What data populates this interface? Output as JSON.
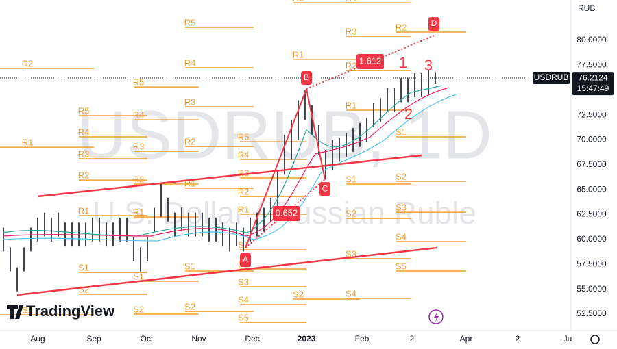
{
  "chart_data": {
    "type": "range-bar",
    "title": "USDRUB, 1D",
    "subtitle": "U.S. Dollar / Russian Ruble",
    "brand": "TradingView",
    "currency": "RUB",
    "symbol": "USDRUB",
    "last_price": 76.2124,
    "last_price_label": "76.2124",
    "countdown": "15:47:49",
    "ylim": [
      50.85,
      84.06
    ],
    "yticks": [
      {
        "value": 80,
        "label": "80.0000"
      },
      {
        "value": 77.5,
        "label": "77.5000"
      },
      {
        "value": 75,
        "label": "75.0000"
      },
      {
        "value": 72.5,
        "label": "72.5000"
      },
      {
        "value": 70,
        "label": "70.0000"
      },
      {
        "value": 67.5,
        "label": "67.5000"
      },
      {
        "value": 65,
        "label": "65.0000"
      },
      {
        "value": 62.5,
        "label": "62.5000"
      },
      {
        "value": 60,
        "label": "60.0000"
      },
      {
        "value": 57.5,
        "label": "57.5000"
      },
      {
        "value": 55,
        "label": "55.0000"
      },
      {
        "value": 52.5,
        "label": "52.5000"
      }
    ],
    "xticks": [
      "Aug",
      "Sep",
      "Oct",
      "Nov",
      "Dec",
      "2023",
      "Feb",
      "2",
      "Apr",
      "2",
      "Ju"
    ],
    "series": [
      {
        "name": "High",
        "color": "#131722",
        "values": [
          61.2,
          59.2,
          57.2,
          59.2,
          61.2,
          62.2,
          62.7,
          62.2,
          62.7,
          61.7,
          61.7,
          61.7,
          61.7,
          62.2,
          62.2,
          61.7,
          61.7,
          62.2,
          62.2,
          60.2,
          59.2,
          60.2,
          63.2,
          65.7,
          64.2,
          62.7,
          63.2,
          62.7,
          62.7,
          62.7,
          62.2,
          62.2,
          61.7,
          61.2,
          61.7,
          61.2,
          62.2,
          62.7,
          63.2,
          64.2,
          67,
          70.5,
          72,
          74,
          75,
          73.5,
          71.5,
          69,
          70,
          70.2,
          70.7,
          71.2,
          71.7,
          72.2,
          73.7,
          74.2,
          75.2,
          75.2,
          76.2,
          76.2,
          76.7,
          76.7,
          77,
          76.8
        ]
      },
      {
        "name": "Low",
        "color": "#131722",
        "values": [
          58.8,
          56.8,
          54.8,
          56.8,
          58.8,
          59.8,
          60.3,
          59.8,
          60.3,
          59.3,
          59.3,
          59.3,
          59.3,
          59.8,
          59.8,
          59.3,
          59.3,
          59.8,
          59.8,
          57.8,
          56.8,
          57.8,
          60.8,
          62.3,
          61.8,
          60.3,
          60.8,
          60.3,
          60.3,
          60.3,
          59.8,
          59.8,
          59.3,
          58.8,
          59.3,
          58.8,
          59.8,
          60.3,
          60.8,
          61.8,
          63,
          66.5,
          68,
          70,
          72,
          70.5,
          68.5,
          66,
          67,
          67.8,
          68.3,
          68.8,
          69.3,
          69.8,
          71.3,
          71.8,
          72.8,
          72.8,
          73.8,
          73.8,
          74.3,
          74.3,
          74.6,
          75.6
        ]
      }
    ],
    "pivot_color": "#f0a030",
    "pivots": [
      [
        {
          "label": "R2",
          "value": 77.18
        },
        {
          "label": "R1",
          "value": 69.27
        },
        {
          "label": "S1",
          "value": 52.43
        }
      ],
      [
        {
          "label": "R5",
          "value": 72.44
        },
        {
          "label": "R4",
          "value": 70.31
        },
        {
          "label": "R3",
          "value": 68.11
        },
        {
          "label": "R2",
          "value": 65.97
        },
        {
          "label": "R1",
          "value": 62.4
        },
        {
          "label": "S1",
          "value": 56.69
        },
        {
          "label": "S2",
          "value": 54.49
        }
      ],
      [
        {
          "label": "R5",
          "value": 75.32
        },
        {
          "label": "R4",
          "value": 72.02
        },
        {
          "label": "R3",
          "value": 68.86
        },
        {
          "label": "R2",
          "value": 65.56
        },
        {
          "label": "R1",
          "value": 62.26
        },
        {
          "label": "S1",
          "value": 55.8
        },
        {
          "label": "S2",
          "value": 52.5
        }
      ],
      [
        {
          "label": "R5",
          "value": 81.31
        },
        {
          "label": "R4",
          "value": 77.25
        },
        {
          "label": "R3",
          "value": 73.33
        },
        {
          "label": "R2",
          "value": 69.34
        },
        {
          "label": "R1",
          "value": 65.15
        },
        {
          "label": "S1",
          "value": 56.83
        },
        {
          "label": "S2",
          "value": 52.77
        }
      ],
      [
        {
          "label": "R5",
          "value": 69.82
        },
        {
          "label": "R4",
          "value": 68.04
        },
        {
          "label": "R3",
          "value": 66.18
        },
        {
          "label": "R2",
          "value": 64.32
        },
        {
          "label": "R1",
          "value": 62.54
        },
        {
          "label": "S1",
          "value": 58.96
        },
        {
          "label": "S2",
          "value": 57.04
        },
        {
          "label": "S3",
          "value": 55.25
        },
        {
          "label": "S4",
          "value": 53.46
        },
        {
          "label": "S5",
          "value": 51.67
        }
      ],
      [
        {
          "label": "R2",
          "value": 83.78
        },
        {
          "label": "R1",
          "value": 78.07
        },
        {
          "label": "S2",
          "value": 54.01
        }
      ],
      [
        {
          "label": "R4",
          "value": 83.78
        },
        {
          "label": "R3",
          "value": 80.41
        },
        {
          "label": "R2",
          "value": 76.97
        },
        {
          "label": "R1",
          "value": 72.99
        },
        {
          "label": "S1",
          "value": 65.56
        },
        {
          "label": "S2",
          "value": 62.12
        },
        {
          "label": "S3",
          "value": 58.07
        },
        {
          "label": "S4",
          "value": 54.08
        }
      ],
      [
        {
          "label": "R2",
          "value": 80.83
        },
        {
          "label": "S1",
          "value": 70.31
        },
        {
          "label": "S2",
          "value": 65.84
        },
        {
          "label": "S3",
          "value": 62.74
        },
        {
          "label": "S4",
          "value": 59.79
        },
        {
          "label": "S5",
          "value": 56.83
        }
      ]
    ],
    "pattern_color": "#f23645",
    "pattern": [
      {
        "label": "A",
        "value": 59.17
      },
      {
        "label": "B",
        "value": 75.12
      },
      {
        "label": "C",
        "value": 66.04
      },
      {
        "label": "D",
        "value": 80.48
      }
    ],
    "ratios": [
      "0.652",
      "1.612"
    ],
    "waves": [
      "1",
      "2",
      "3"
    ]
  }
}
